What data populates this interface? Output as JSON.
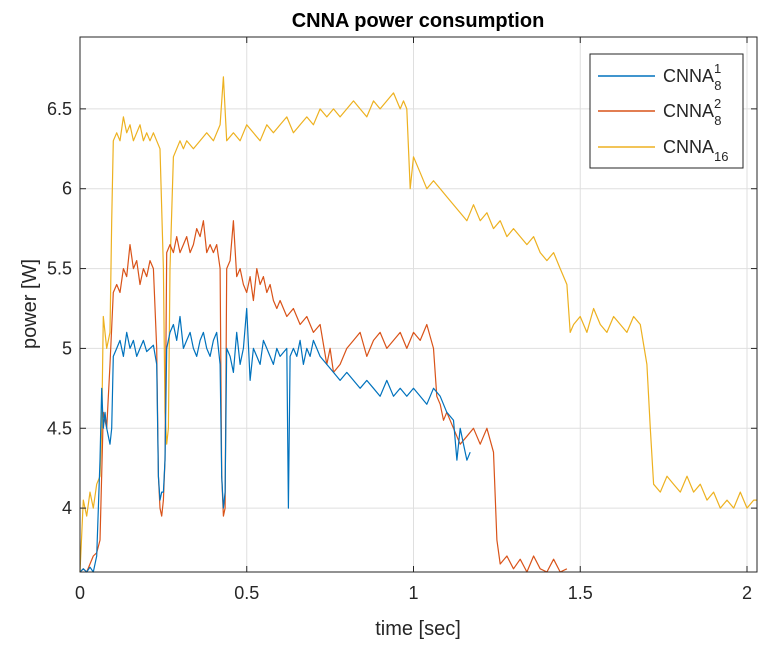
{
  "chart_data": {
    "type": "line",
    "title": "CNNA power consumption",
    "xlabel": "time [sec]",
    "ylabel": "power [W]",
    "xlim": [
      0,
      2.03
    ],
    "ylim": [
      3.6,
      6.95
    ],
    "grid": true,
    "legend_position": "top-right",
    "xticks": [
      0,
      0.5,
      1,
      1.5,
      2
    ],
    "xtick_labels": [
      "0",
      "0.5",
      "1",
      "1.5",
      "2"
    ],
    "yticks": [
      4,
      4.5,
      5,
      5.5,
      6,
      6.5
    ],
    "ytick_labels": [
      "4",
      "4.5",
      "5",
      "5.5",
      "6",
      "6.5"
    ],
    "series": [
      {
        "name": "CNNA_8^1",
        "label_base": "CNNA",
        "label_sub": "8",
        "label_sup": "1",
        "color": "#0072BD",
        "x": [
          0,
          0.01,
          0.02,
          0.03,
          0.04,
          0.05,
          0.06,
          0.065,
          0.07,
          0.075,
          0.08,
          0.09,
          0.095,
          0.1,
          0.11,
          0.12,
          0.13,
          0.14,
          0.15,
          0.16,
          0.17,
          0.18,
          0.19,
          0.2,
          0.21,
          0.22,
          0.23,
          0.235,
          0.24,
          0.245,
          0.25,
          0.255,
          0.26,
          0.27,
          0.28,
          0.29,
          0.3,
          0.31,
          0.32,
          0.33,
          0.34,
          0.35,
          0.36,
          0.37,
          0.38,
          0.39,
          0.4,
          0.41,
          0.42,
          0.425,
          0.43,
          0.435,
          0.44,
          0.45,
          0.46,
          0.47,
          0.48,
          0.49,
          0.5,
          0.51,
          0.52,
          0.53,
          0.54,
          0.55,
          0.56,
          0.57,
          0.58,
          0.59,
          0.6,
          0.62,
          0.625,
          0.63,
          0.64,
          0.65,
          0.66,
          0.67,
          0.68,
          0.69,
          0.7,
          0.72,
          0.74,
          0.76,
          0.78,
          0.8,
          0.82,
          0.84,
          0.86,
          0.88,
          0.9,
          0.92,
          0.94,
          0.96,
          0.98,
          1.0,
          1.02,
          1.04,
          1.06,
          1.08,
          1.1,
          1.12,
          1.13,
          1.14,
          1.15,
          1.16,
          1.17
        ],
        "y": [
          3.6,
          3.62,
          3.6,
          3.63,
          3.6,
          3.7,
          4.3,
          4.75,
          4.5,
          4.6,
          4.5,
          4.4,
          4.5,
          4.95,
          5.0,
          5.05,
          4.95,
          5.1,
          5.0,
          5.05,
          4.95,
          5.0,
          5.05,
          4.98,
          5.0,
          5.02,
          4.9,
          4.2,
          4.05,
          4.1,
          4.1,
          4.3,
          5.0,
          5.1,
          5.15,
          5.05,
          5.2,
          5.0,
          5.05,
          5.1,
          5.0,
          4.95,
          5.05,
          5.1,
          5.0,
          4.95,
          5.05,
          5.1,
          4.9,
          4.2,
          4.0,
          4.1,
          5.0,
          4.95,
          4.85,
          5.1,
          4.9,
          5.0,
          5.25,
          4.8,
          5.0,
          4.95,
          4.9,
          5.05,
          5.0,
          4.95,
          4.9,
          5.0,
          4.95,
          5.0,
          4.0,
          4.95,
          5.0,
          4.95,
          5.05,
          4.9,
          5.0,
          4.95,
          5.05,
          4.95,
          4.9,
          4.85,
          4.8,
          4.85,
          4.8,
          4.75,
          4.8,
          4.75,
          4.7,
          4.8,
          4.7,
          4.75,
          4.7,
          4.75,
          4.7,
          4.65,
          4.75,
          4.7,
          4.6,
          4.55,
          4.3,
          4.5,
          4.4,
          4.3,
          4.35
        ]
      },
      {
        "name": "CNNA_8^2",
        "label_base": "CNNA",
        "label_sub": "8",
        "label_sup": "2",
        "color": "#D95319",
        "x": [
          0,
          0.01,
          0.02,
          0.03,
          0.04,
          0.05,
          0.06,
          0.07,
          0.08,
          0.09,
          0.1,
          0.11,
          0.12,
          0.13,
          0.14,
          0.15,
          0.16,
          0.17,
          0.18,
          0.19,
          0.2,
          0.21,
          0.22,
          0.23,
          0.235,
          0.24,
          0.245,
          0.25,
          0.255,
          0.26,
          0.27,
          0.28,
          0.29,
          0.3,
          0.31,
          0.32,
          0.33,
          0.34,
          0.35,
          0.36,
          0.37,
          0.38,
          0.39,
          0.4,
          0.41,
          0.42,
          0.425,
          0.43,
          0.435,
          0.44,
          0.45,
          0.46,
          0.47,
          0.48,
          0.49,
          0.5,
          0.51,
          0.52,
          0.53,
          0.54,
          0.55,
          0.56,
          0.57,
          0.58,
          0.59,
          0.6,
          0.62,
          0.64,
          0.66,
          0.68,
          0.7,
          0.72,
          0.74,
          0.75,
          0.76,
          0.78,
          0.8,
          0.82,
          0.84,
          0.86,
          0.88,
          0.9,
          0.92,
          0.94,
          0.96,
          0.98,
          1.0,
          1.02,
          1.04,
          1.06,
          1.07,
          1.08,
          1.09,
          1.1,
          1.12,
          1.14,
          1.16,
          1.18,
          1.2,
          1.22,
          1.24,
          1.25,
          1.26,
          1.28,
          1.3,
          1.32,
          1.34,
          1.36,
          1.38,
          1.4,
          1.42,
          1.44,
          1.46
        ],
        "y": [
          3.6,
          3.62,
          3.6,
          3.65,
          3.7,
          3.72,
          3.8,
          4.6,
          4.5,
          4.9,
          5.35,
          5.4,
          5.35,
          5.5,
          5.45,
          5.65,
          5.5,
          5.55,
          5.4,
          5.5,
          5.45,
          5.55,
          5.5,
          5.0,
          4.2,
          4.0,
          3.95,
          4.05,
          4.3,
          5.6,
          5.65,
          5.6,
          5.7,
          5.6,
          5.65,
          5.7,
          5.6,
          5.65,
          5.75,
          5.7,
          5.8,
          5.6,
          5.65,
          5.6,
          5.65,
          5.5,
          4.2,
          3.95,
          4.0,
          5.5,
          5.55,
          5.8,
          5.45,
          5.5,
          5.4,
          5.35,
          5.45,
          5.3,
          5.5,
          5.4,
          5.45,
          5.35,
          5.4,
          5.3,
          5.25,
          5.3,
          5.2,
          5.25,
          5.15,
          5.2,
          5.1,
          5.15,
          4.9,
          5.0,
          4.85,
          4.9,
          5.0,
          5.05,
          5.1,
          4.95,
          5.05,
          5.1,
          5.0,
          5.05,
          5.1,
          5.0,
          5.1,
          5.05,
          5.15,
          5.0,
          4.7,
          4.65,
          4.55,
          4.6,
          4.5,
          4.4,
          4.45,
          4.5,
          4.4,
          4.5,
          4.35,
          3.8,
          3.65,
          3.7,
          3.62,
          3.68,
          3.6,
          3.7,
          3.62,
          3.6,
          3.68,
          3.6,
          3.62
        ]
      },
      {
        "name": "CNNA_16",
        "label_base": "CNNA",
        "label_sub": "16",
        "label_sup": "",
        "color": "#EDB120",
        "x": [
          0,
          0.01,
          0.02,
          0.03,
          0.04,
          0.05,
          0.06,
          0.065,
          0.07,
          0.08,
          0.09,
          0.095,
          0.1,
          0.11,
          0.12,
          0.13,
          0.14,
          0.15,
          0.16,
          0.17,
          0.18,
          0.19,
          0.2,
          0.21,
          0.22,
          0.23,
          0.24,
          0.25,
          0.255,
          0.26,
          0.265,
          0.27,
          0.28,
          0.29,
          0.3,
          0.31,
          0.32,
          0.34,
          0.36,
          0.38,
          0.4,
          0.42,
          0.43,
          0.44,
          0.46,
          0.48,
          0.5,
          0.52,
          0.54,
          0.56,
          0.58,
          0.6,
          0.62,
          0.64,
          0.66,
          0.68,
          0.7,
          0.72,
          0.74,
          0.76,
          0.78,
          0.8,
          0.82,
          0.84,
          0.86,
          0.88,
          0.9,
          0.92,
          0.94,
          0.96,
          0.97,
          0.98,
          0.99,
          1.0,
          1.02,
          1.04,
          1.06,
          1.08,
          1.1,
          1.12,
          1.14,
          1.16,
          1.18,
          1.2,
          1.22,
          1.24,
          1.26,
          1.28,
          1.3,
          1.32,
          1.34,
          1.36,
          1.38,
          1.4,
          1.42,
          1.44,
          1.46,
          1.47,
          1.48,
          1.5,
          1.52,
          1.54,
          1.56,
          1.58,
          1.6,
          1.62,
          1.64,
          1.66,
          1.68,
          1.7,
          1.71,
          1.72,
          1.74,
          1.76,
          1.78,
          1.8,
          1.82,
          1.84,
          1.86,
          1.88,
          1.9,
          1.92,
          1.94,
          1.96,
          1.98,
          2.0,
          2.02,
          2.03
        ],
        "y": [
          3.6,
          4.05,
          3.95,
          4.1,
          4.0,
          4.15,
          4.2,
          4.5,
          5.2,
          5.0,
          5.1,
          5.8,
          6.3,
          6.35,
          6.3,
          6.45,
          6.35,
          6.4,
          6.3,
          6.35,
          6.4,
          6.3,
          6.35,
          6.3,
          6.35,
          6.3,
          6.25,
          5.5,
          4.6,
          4.4,
          4.5,
          5.5,
          6.2,
          6.25,
          6.3,
          6.25,
          6.3,
          6.25,
          6.3,
          6.35,
          6.3,
          6.4,
          6.7,
          6.3,
          6.35,
          6.3,
          6.4,
          6.35,
          6.3,
          6.4,
          6.35,
          6.4,
          6.45,
          6.35,
          6.4,
          6.45,
          6.4,
          6.5,
          6.45,
          6.5,
          6.45,
          6.5,
          6.55,
          6.5,
          6.45,
          6.55,
          6.5,
          6.55,
          6.6,
          6.5,
          6.55,
          6.5,
          6.0,
          6.2,
          6.1,
          6.0,
          6.05,
          6.0,
          5.95,
          5.9,
          5.85,
          5.8,
          5.9,
          5.8,
          5.85,
          5.75,
          5.8,
          5.7,
          5.75,
          5.7,
          5.65,
          5.7,
          5.6,
          5.55,
          5.6,
          5.5,
          5.4,
          5.1,
          5.15,
          5.2,
          5.1,
          5.25,
          5.15,
          5.1,
          5.2,
          5.15,
          5.1,
          5.2,
          5.15,
          4.9,
          4.5,
          4.15,
          4.1,
          4.2,
          4.15,
          4.1,
          4.2,
          4.1,
          4.15,
          4.05,
          4.1,
          4.0,
          4.05,
          4.0,
          4.1,
          4.0,
          4.05,
          4.05
        ]
      }
    ]
  }
}
